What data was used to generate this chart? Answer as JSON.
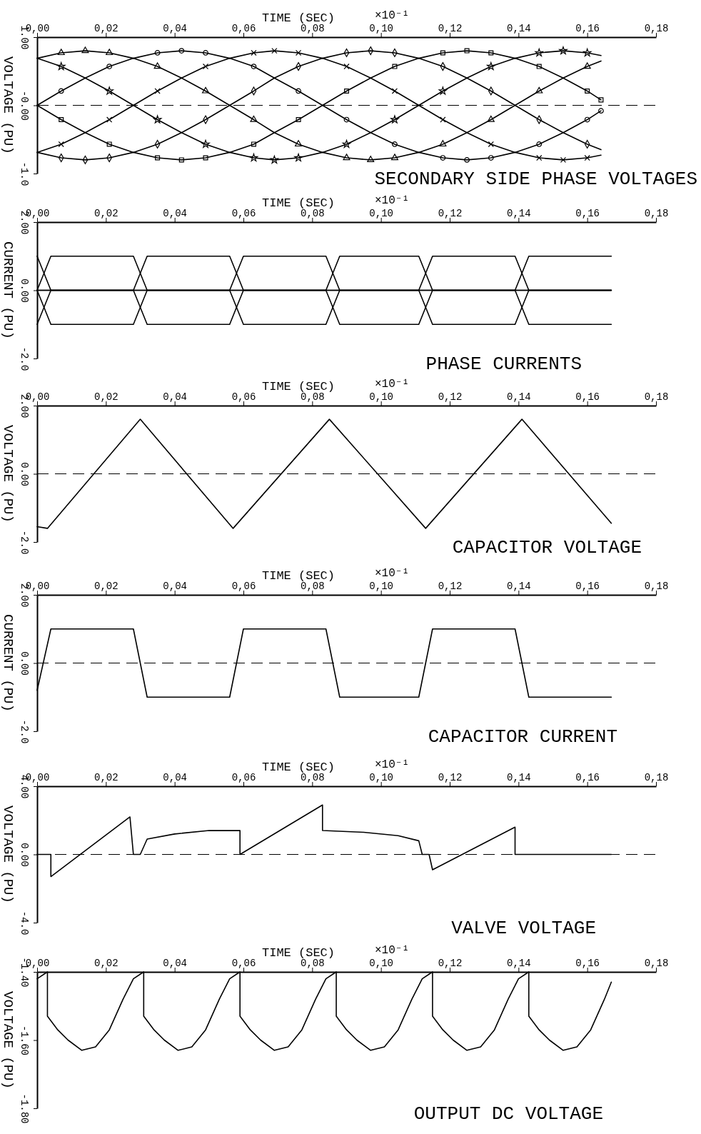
{
  "chart_data": [
    {
      "type": "line",
      "title": "SECONDARY SIDE PHASE VOLTAGES",
      "xlabel": "TIME (SEC)",
      "ylabel": "VOLTAGE (PU)",
      "annotations": [
        "×10⁻¹"
      ],
      "xlim": [
        0,
        0.18
      ],
      "xticks": [
        {
          "value": 0,
          "label": "0,00"
        },
        {
          "value": 0.02,
          "label": "0,02"
        },
        {
          "value": 0.04,
          "label": "0,04"
        },
        {
          "value": 0.06,
          "label": "0,06"
        },
        {
          "value": 0.08,
          "label": "0,08"
        },
        {
          "value": 0.1,
          "label": "0,10"
        },
        {
          "value": 0.12,
          "label": "0,12"
        },
        {
          "value": 0.14,
          "label": "0,14"
        },
        {
          "value": 0.16,
          "label": "0,16"
        },
        {
          "value": 0.18,
          "label": "0,18"
        }
      ],
      "ylim": [
        -1,
        1
      ],
      "yticks": [
        {
          "value": 1,
          "label": "1.00"
        },
        {
          "value": 0,
          "label": "-0.00"
        },
        {
          "value": -1,
          "label": "-1.0"
        }
      ],
      "ref_lines": [
        {
          "axis": "y",
          "value": 0,
          "line_style": "dashed"
        }
      ],
      "x": [
        0,
        0.007,
        0.014,
        0.021,
        0.028,
        0.035,
        0.042,
        0.049,
        0.056,
        0.063,
        0.069,
        0.076,
        0.083,
        0.09,
        0.097,
        0.104,
        0.111,
        0.118,
        0.125,
        0.132,
        0.139,
        0.146,
        0.153,
        0.16,
        0.164
      ],
      "series": [
        {
          "color": "#000000",
          "marker": "circle",
          "values": [
            0,
            0.21,
            0.4,
            0.57,
            0.69,
            0.77,
            0.8,
            0.77,
            0.69,
            0.57,
            0.4,
            0.21,
            0,
            -0.21,
            -0.4,
            -0.57,
            -0.69,
            -0.77,
            -0.8,
            -0.77,
            -0.69,
            -0.57,
            -0.4,
            -0.21,
            -0.08
          ]
        },
        {
          "color": "#000000",
          "marker": "triangle",
          "values": [
            0.69,
            0.77,
            0.8,
            0.77,
            0.69,
            0.57,
            0.4,
            0.21,
            0,
            -0.21,
            -0.4,
            -0.57,
            -0.69,
            -0.77,
            -0.8,
            -0.77,
            -0.69,
            -0.57,
            -0.4,
            -0.21,
            0,
            0.21,
            0.4,
            0.57,
            0.65
          ]
        },
        {
          "color": "#000000",
          "marker": "star",
          "values": [
            0.69,
            0.57,
            0.4,
            0.21,
            0,
            -0.21,
            -0.4,
            -0.57,
            -0.69,
            -0.77,
            -0.8,
            -0.77,
            -0.69,
            -0.57,
            -0.4,
            -0.21,
            0,
            0.21,
            0.4,
            0.57,
            0.69,
            0.77,
            0.8,
            0.77,
            0.73
          ]
        },
        {
          "color": "#000000",
          "marker": "square",
          "values": [
            0,
            -0.21,
            -0.4,
            -0.57,
            -0.69,
            -0.77,
            -0.8,
            -0.77,
            -0.69,
            -0.57,
            -0.4,
            -0.21,
            0,
            0.21,
            0.4,
            0.57,
            0.69,
            0.77,
            0.8,
            0.77,
            0.69,
            0.57,
            0.4,
            0.21,
            0.08
          ]
        },
        {
          "color": "#000000",
          "marker": "diamond",
          "values": [
            -0.69,
            -0.77,
            -0.8,
            -0.77,
            -0.69,
            -0.57,
            -0.4,
            -0.21,
            0,
            0.21,
            0.4,
            0.57,
            0.69,
            0.77,
            0.8,
            0.77,
            0.69,
            0.57,
            0.4,
            0.21,
            0,
            -0.21,
            -0.4,
            -0.57,
            -0.65
          ]
        },
        {
          "color": "#000000",
          "marker": "cross",
          "values": [
            -0.69,
            -0.57,
            -0.4,
            -0.21,
            0,
            0.21,
            0.4,
            0.57,
            0.69,
            0.77,
            0.8,
            0.77,
            0.69,
            0.57,
            0.4,
            0.21,
            0,
            -0.21,
            -0.4,
            -0.57,
            -0.69,
            -0.77,
            -0.8,
            -0.77,
            -0.73
          ]
        }
      ]
    },
    {
      "type": "line",
      "title": "PHASE CURRENTS",
      "xlabel": "TIME (SEC)",
      "ylabel": "CURRENT (PU)",
      "annotations": [
        "×10⁻¹"
      ],
      "xlim": [
        0,
        0.18
      ],
      "xticks": [
        {
          "value": 0,
          "label": "0,00"
        },
        {
          "value": 0.02,
          "label": "0,02"
        },
        {
          "value": 0.04,
          "label": "0,04"
        },
        {
          "value": 0.06,
          "label": "0,06"
        },
        {
          "value": 0.08,
          "label": "0,08"
        },
        {
          "value": 0.1,
          "label": "0,10"
        },
        {
          "value": 0.12,
          "label": "0,12"
        },
        {
          "value": 0.14,
          "label": "0,14"
        },
        {
          "value": 0.16,
          "label": "0,16"
        },
        {
          "value": 0.18,
          "label": "0,18"
        }
      ],
      "ylim": [
        -2,
        2
      ],
      "yticks": [
        {
          "value": 2,
          "label": "2.00"
        },
        {
          "value": 0,
          "label": "0.00"
        },
        {
          "value": -2,
          "label": "-2.0"
        }
      ],
      "x": [
        0,
        0.004,
        0.028,
        0.032,
        0.056,
        0.06,
        0.084,
        0.088,
        0.111,
        0.115,
        0.139,
        0.143,
        0.167
      ],
      "series": [
        {
          "color": "#000000",
          "values": [
            0,
            1,
            1,
            0,
            0,
            0,
            0,
            -1,
            -1,
            0,
            0,
            0,
            0
          ]
        },
        {
          "color": "#000000",
          "values": [
            0,
            0,
            0,
            1,
            1,
            0,
            0,
            0,
            0,
            -1,
            -1,
            0,
            0
          ]
        },
        {
          "color": "#000000",
          "values": [
            -1,
            0,
            0,
            0,
            0,
            1,
            1,
            0,
            0,
            0,
            0,
            -1,
            -1
          ]
        },
        {
          "color": "#000000",
          "values": [
            0,
            -1,
            -1,
            0,
            0,
            0,
            0,
            1,
            1,
            0,
            0,
            0,
            0
          ]
        },
        {
          "color": "#000000",
          "values": [
            0,
            0,
            0,
            -1,
            -1,
            0,
            0,
            0,
            0,
            1,
            1,
            0,
            0
          ]
        },
        {
          "color": "#000000",
          "values": [
            1,
            0,
            0,
            0,
            0,
            -1,
            -1,
            0,
            0,
            0,
            0,
            1,
            1
          ]
        }
      ]
    },
    {
      "type": "line",
      "title": "CAPACITOR VOLTAGE",
      "xlabel": "TIME (SEC)",
      "ylabel": "VOLTAGE (PU)",
      "annotations": [
        "×10⁻¹"
      ],
      "xlim": [
        0,
        0.18
      ],
      "xticks": [
        {
          "value": 0,
          "label": "0,00"
        },
        {
          "value": 0.02,
          "label": "0,02"
        },
        {
          "value": 0.04,
          "label": "0,04"
        },
        {
          "value": 0.06,
          "label": "0,06"
        },
        {
          "value": 0.08,
          "label": "0,08"
        },
        {
          "value": 0.1,
          "label": "0,10"
        },
        {
          "value": 0.12,
          "label": "0,12"
        },
        {
          "value": 0.14,
          "label": "0,14"
        },
        {
          "value": 0.16,
          "label": "0,16"
        },
        {
          "value": 0.18,
          "label": "0,18"
        }
      ],
      "ylim": [
        -2,
        2
      ],
      "yticks": [
        {
          "value": 2,
          "label": "2.00"
        },
        {
          "value": 0,
          "label": "0.00"
        },
        {
          "value": -2,
          "label": "-2.0"
        }
      ],
      "ref_lines": [
        {
          "axis": "y",
          "value": 0,
          "line_style": "dashed"
        }
      ],
      "color": "#000000",
      "x": [
        0,
        0.003,
        0.03,
        0.057,
        0.085,
        0.113,
        0.141,
        0.167
      ],
      "values": [
        -1.55,
        -1.6,
        1.6,
        -1.6,
        1.6,
        -1.6,
        1.6,
        -1.45
      ]
    },
    {
      "type": "line",
      "title": "CAPACITOR CURRENT",
      "xlabel": "TIME (SEC)",
      "ylabel": "CURRENT (PU)",
      "annotations": [
        "×10⁻¹"
      ],
      "xlim": [
        0,
        0.18
      ],
      "xticks": [
        {
          "value": 0,
          "label": "0,00"
        },
        {
          "value": 0.02,
          "label": "0,02"
        },
        {
          "value": 0.04,
          "label": "0,04"
        },
        {
          "value": 0.06,
          "label": "0,06"
        },
        {
          "value": 0.08,
          "label": "0,08"
        },
        {
          "value": 0.1,
          "label": "0,10"
        },
        {
          "value": 0.12,
          "label": "0,12"
        },
        {
          "value": 0.14,
          "label": "0,14"
        },
        {
          "value": 0.16,
          "label": "0,16"
        },
        {
          "value": 0.18,
          "label": "0,18"
        }
      ],
      "ylim": [
        -2,
        2
      ],
      "yticks": [
        {
          "value": 2,
          "label": "2.00"
        },
        {
          "value": 0,
          "label": "0.00"
        },
        {
          "value": -2,
          "label": "-2.0"
        }
      ],
      "ref_lines": [
        {
          "axis": "y",
          "value": 0,
          "line_style": "dashed"
        }
      ],
      "color": "#000000",
      "x": [
        0,
        0.004,
        0.028,
        0.032,
        0.056,
        0.06,
        0.084,
        0.088,
        0.111,
        0.115,
        0.139,
        0.143,
        0.167
      ],
      "values": [
        -0.8,
        1,
        1,
        -1,
        -1,
        1,
        1,
        -1,
        -1,
        1,
        1,
        -1,
        -1
      ]
    },
    {
      "type": "line",
      "title": "VALVE VOLTAGE",
      "xlabel": "TIME (SEC)",
      "ylabel": "VOLTAGE (PU)",
      "annotations": [
        "×10⁻¹"
      ],
      "xlim": [
        0,
        0.18
      ],
      "xticks": [
        {
          "value": 0,
          "label": "0,00"
        },
        {
          "value": 0.02,
          "label": "0,02"
        },
        {
          "value": 0.04,
          "label": "0,04"
        },
        {
          "value": 0.06,
          "label": "0,06"
        },
        {
          "value": 0.08,
          "label": "0,08"
        },
        {
          "value": 0.1,
          "label": "0,10"
        },
        {
          "value": 0.12,
          "label": "0,12"
        },
        {
          "value": 0.14,
          "label": "0,14"
        },
        {
          "value": 0.16,
          "label": "0,16"
        },
        {
          "value": 0.18,
          "label": "0,18"
        }
      ],
      "ylim": [
        -4,
        4
      ],
      "yticks": [
        {
          "value": 4,
          "label": "4.00"
        },
        {
          "value": 0,
          "label": "0.00"
        },
        {
          "value": -4,
          "label": "-4.0"
        }
      ],
      "ref_lines": [
        {
          "axis": "y",
          "value": 0,
          "line_style": "dashed"
        }
      ],
      "color": "#000000",
      "x": [
        0,
        0.004,
        0.004,
        0.027,
        0.028,
        0.03,
        0.032,
        0.04,
        0.05,
        0.059,
        0.059,
        0.083,
        0.083,
        0.095,
        0.105,
        0.111,
        0.112,
        0.114,
        0.115,
        0.139,
        0.139,
        0.167
      ],
      "values": [
        0,
        0,
        -1.3,
        2.2,
        0,
        0,
        0.9,
        1.2,
        1.4,
        1.4,
        0,
        2.9,
        1.4,
        1.3,
        1.1,
        0.8,
        0,
        0,
        -0.9,
        1.6,
        0,
        0
      ]
    },
    {
      "type": "line",
      "title": "OUTPUT DC VOLTAGE",
      "xlabel": "TIME (SEC)",
      "ylabel": "VOLTAGE (PU)",
      "annotations": [
        "×10⁻¹"
      ],
      "xlim": [
        0,
        0.18
      ],
      "xticks": [
        {
          "value": 0,
          "label": "0,00"
        },
        {
          "value": 0.02,
          "label": "0,02"
        },
        {
          "value": 0.04,
          "label": "0,04"
        },
        {
          "value": 0.06,
          "label": "0,06"
        },
        {
          "value": 0.08,
          "label": "0,08"
        },
        {
          "value": 0.1,
          "label": "0,10"
        },
        {
          "value": 0.12,
          "label": "0,12"
        },
        {
          "value": 0.14,
          "label": "0,14"
        },
        {
          "value": 0.16,
          "label": "0,16"
        },
        {
          "value": 0.18,
          "label": "0,18"
        }
      ],
      "ylim": [
        -1.8,
        -1.4
      ],
      "yticks": [
        {
          "value": -1.4,
          "label": "-1.40"
        },
        {
          "value": -1.6,
          "label": "-1.60"
        },
        {
          "value": -1.8,
          "label": "-1.80"
        }
      ],
      "color": "#000000",
      "x": [
        0,
        0.003,
        0.003,
        0.006,
        0.009,
        0.013,
        0.017,
        0.021,
        0.025,
        0.028,
        0.031,
        0.031,
        0.034,
        0.037,
        0.041,
        0.045,
        0.049,
        0.053,
        0.056,
        0.059,
        0.059,
        0.062,
        0.065,
        0.069,
        0.073,
        0.077,
        0.081,
        0.084,
        0.087,
        0.087,
        0.09,
        0.093,
        0.097,
        0.101,
        0.105,
        0.109,
        0.112,
        0.115,
        0.115,
        0.118,
        0.121,
        0.125,
        0.129,
        0.133,
        0.137,
        0.14,
        0.143,
        0.143,
        0.146,
        0.149,
        0.153,
        0.157,
        0.161,
        0.165,
        0.167
      ],
      "values": [
        -1.42,
        -1.4,
        -1.53,
        -1.57,
        -1.6,
        -1.63,
        -1.62,
        -1.57,
        -1.48,
        -1.42,
        -1.4,
        -1.53,
        -1.57,
        -1.6,
        -1.63,
        -1.62,
        -1.57,
        -1.48,
        -1.42,
        -1.4,
        -1.53,
        -1.57,
        -1.6,
        -1.63,
        -1.62,
        -1.57,
        -1.48,
        -1.42,
        -1.4,
        -1.53,
        -1.57,
        -1.6,
        -1.63,
        -1.62,
        -1.57,
        -1.48,
        -1.42,
        -1.4,
        -1.53,
        -1.57,
        -1.6,
        -1.63,
        -1.62,
        -1.57,
        -1.48,
        -1.42,
        -1.4,
        -1.53,
        -1.57,
        -1.6,
        -1.63,
        -1.62,
        -1.57,
        -1.48,
        -1.43
      ]
    }
  ]
}
